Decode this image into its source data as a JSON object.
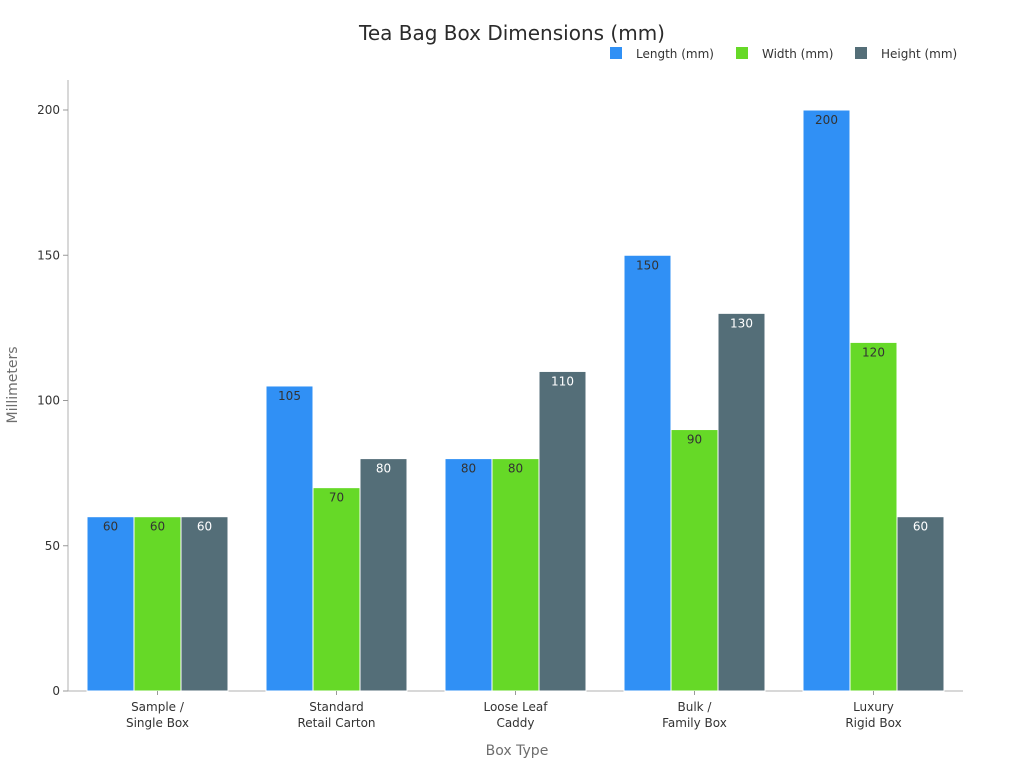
{
  "chart_data": {
    "type": "bar",
    "title": "Tea Bag Box Dimensions (mm)",
    "xlabel": "Box Type",
    "ylabel": "Millimeters",
    "categories": [
      [
        "Sample /",
        "Single Box"
      ],
      [
        "Standard",
        "Retail Carton"
      ],
      [
        "Loose Leaf",
        "Caddy"
      ],
      [
        "Bulk /",
        "Family Box"
      ],
      [
        "Luxury",
        "Rigid Box"
      ]
    ],
    "series": [
      {
        "name": "Length (mm)",
        "color": "#3090f5",
        "label_color": "#333333",
        "values": [
          60,
          105,
          80,
          150,
          200
        ]
      },
      {
        "name": "Width (mm)",
        "color": "#66d927",
        "label_color": "#333333",
        "values": [
          60,
          70,
          80,
          90,
          120
        ]
      },
      {
        "name": "Height (mm)",
        "color": "#546e78",
        "label_color": "#ffffff",
        "values": [
          60,
          80,
          110,
          130,
          60
        ]
      }
    ],
    "yticks": [
      0,
      50,
      100,
      150,
      200
    ],
    "ylim": [
      0,
      210
    ],
    "grid": false,
    "legend_position": "top-right"
  }
}
